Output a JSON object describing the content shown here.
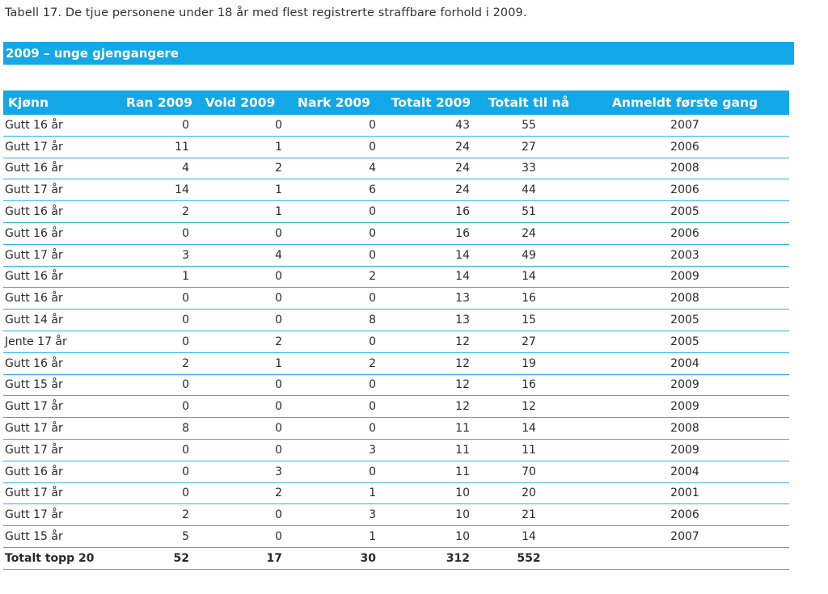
{
  "caption": "Tabell 17. De tjue personene under 18 år med flest registrerte straffbare forhold i 2009.",
  "banner": "2009 – unge gjengangere",
  "headers": [
    "Kjønn",
    "Ran 2009",
    "Vold 2009",
    "Nark 2009",
    "Totalt 2009",
    "Totalt til nå",
    "Anmeldt første gang"
  ],
  "rows": [
    [
      "Gutt 16 år",
      "0",
      "0",
      "0",
      "43",
      "55",
      "2007"
    ],
    [
      "Gutt 17 år",
      "11",
      "1",
      "0",
      "24",
      "27",
      "2006"
    ],
    [
      "Gutt 16 år",
      "4",
      "2",
      "4",
      "24",
      "33",
      "2008"
    ],
    [
      "Gutt 17 år",
      "14",
      "1",
      "6",
      "24",
      "44",
      "2006"
    ],
    [
      "Gutt 16 år",
      "2",
      "1",
      "0",
      "16",
      "51",
      "2005"
    ],
    [
      "Gutt 16 år",
      "0",
      "0",
      "0",
      "16",
      "24",
      "2006"
    ],
    [
      "Gutt 17 år",
      "3",
      "4",
      "0",
      "14",
      "49",
      "2003"
    ],
    [
      "Gutt 16 år",
      "1",
      "0",
      "2",
      "14",
      "14",
      "2009"
    ],
    [
      "Gutt 16 år",
      "0",
      "0",
      "0",
      "13",
      "16",
      "2008"
    ],
    [
      "Gutt 14 år",
      "0",
      "0",
      "8",
      "13",
      "15",
      "2005"
    ],
    [
      "Jente 17 år",
      "0",
      "2",
      "0",
      "12",
      "27",
      "2005"
    ],
    [
      "Gutt 16 år",
      "2",
      "1",
      "2",
      "12",
      "19",
      "2004"
    ],
    [
      "Gutt 15 år",
      "0",
      "0",
      "0",
      "12",
      "16",
      "2009"
    ],
    [
      "Gutt 17 år",
      "0",
      "0",
      "0",
      "12",
      "12",
      "2009"
    ],
    [
      "Gutt 17 år",
      "8",
      "0",
      "0",
      "11",
      "14",
      "2008"
    ],
    [
      "Gutt 17 år",
      "0",
      "0",
      "3",
      "11",
      "11",
      "2009"
    ],
    [
      "Gutt 16 år",
      "0",
      "3",
      "0",
      "11",
      "70",
      "2004"
    ],
    [
      "Gutt 17 år",
      "0",
      "2",
      "1",
      "10",
      "20",
      "2001"
    ],
    [
      "Gutt 17 år",
      "2",
      "0",
      "3",
      "10",
      "21",
      "2006"
    ],
    [
      "Gutt 15 år",
      "5",
      "0",
      "1",
      "10",
      "14",
      "2007"
    ]
  ],
  "total": [
    "Totalt topp 20",
    "52",
    "17",
    "30",
    "312",
    "552",
    ""
  ],
  "colors": {
    "accent": "#13a8e8",
    "rule": "#2ab2ea"
  }
}
